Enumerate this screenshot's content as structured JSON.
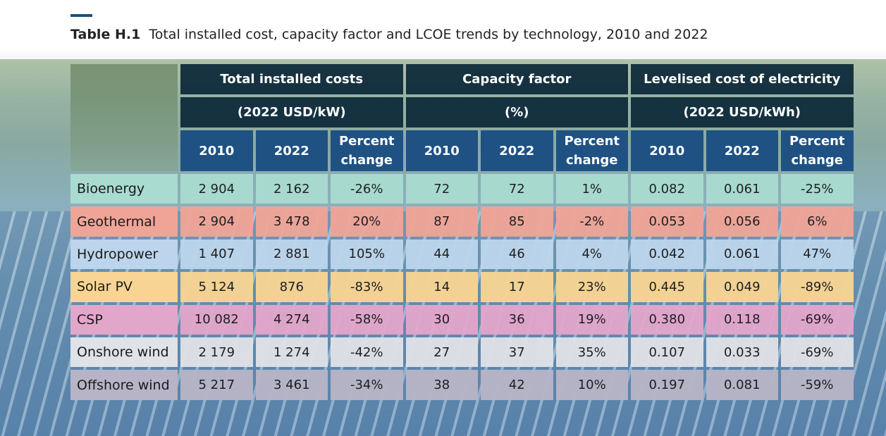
{
  "caption": {
    "label": "Table H.1",
    "text": "Total installed cost, capacity factor and LCOE trends by technology, 2010 and 2022"
  },
  "groups": [
    {
      "title": "Total installed costs",
      "unit": "(2022 USD/kW)"
    },
    {
      "title": "Capacity factor",
      "unit": "(%)"
    },
    {
      "title": "Levelised cost of electricity",
      "unit": "(2022 USD/kWh)"
    }
  ],
  "subheaders": [
    "2010",
    "2022",
    "Percent\nchange"
  ],
  "rows": [
    {
      "name": "Bioenergy",
      "color": "#a9dbd0",
      "values": [
        "2 904",
        "2 162",
        "-26%",
        "72",
        "72",
        "1%",
        "0.082",
        "0.061",
        "-25%"
      ]
    },
    {
      "name": "Geothermal",
      "color": "#f0a497",
      "values": [
        "2 904",
        "3 478",
        "20%",
        "87",
        "85",
        "-2%",
        "0.053",
        "0.056",
        "6%"
      ]
    },
    {
      "name": "Hydropower",
      "color": "#bcd5ec",
      "values": [
        "1 407",
        "2 881",
        "105%",
        "44",
        "46",
        "4%",
        "0.042",
        "0.061",
        "47%"
      ]
    },
    {
      "name": "Solar PV",
      "color": "#f7d493",
      "values": [
        "5 124",
        "876",
        "-83%",
        "14",
        "17",
        "23%",
        "0.445",
        "0.049",
        "-89%"
      ]
    },
    {
      "name": "CSP",
      "color": "#e3a6cb",
      "values": [
        "10 082",
        "4 274",
        "-58%",
        "30",
        "36",
        "19%",
        "0.380",
        "0.118",
        "-69%"
      ]
    },
    {
      "name": "Onshore wind",
      "color": "#dfe2e7",
      "values": [
        "2 179",
        "1 274",
        "-42%",
        "27",
        "37",
        "35%",
        "0.107",
        "0.033",
        "-69%"
      ]
    },
    {
      "name": "Offshore wind",
      "color": "#b8b4c7",
      "values": [
        "5 217",
        "3 461",
        "-34%",
        "38",
        "42",
        "10%",
        "0.197",
        "0.081",
        "-59%"
      ]
    }
  ]
}
